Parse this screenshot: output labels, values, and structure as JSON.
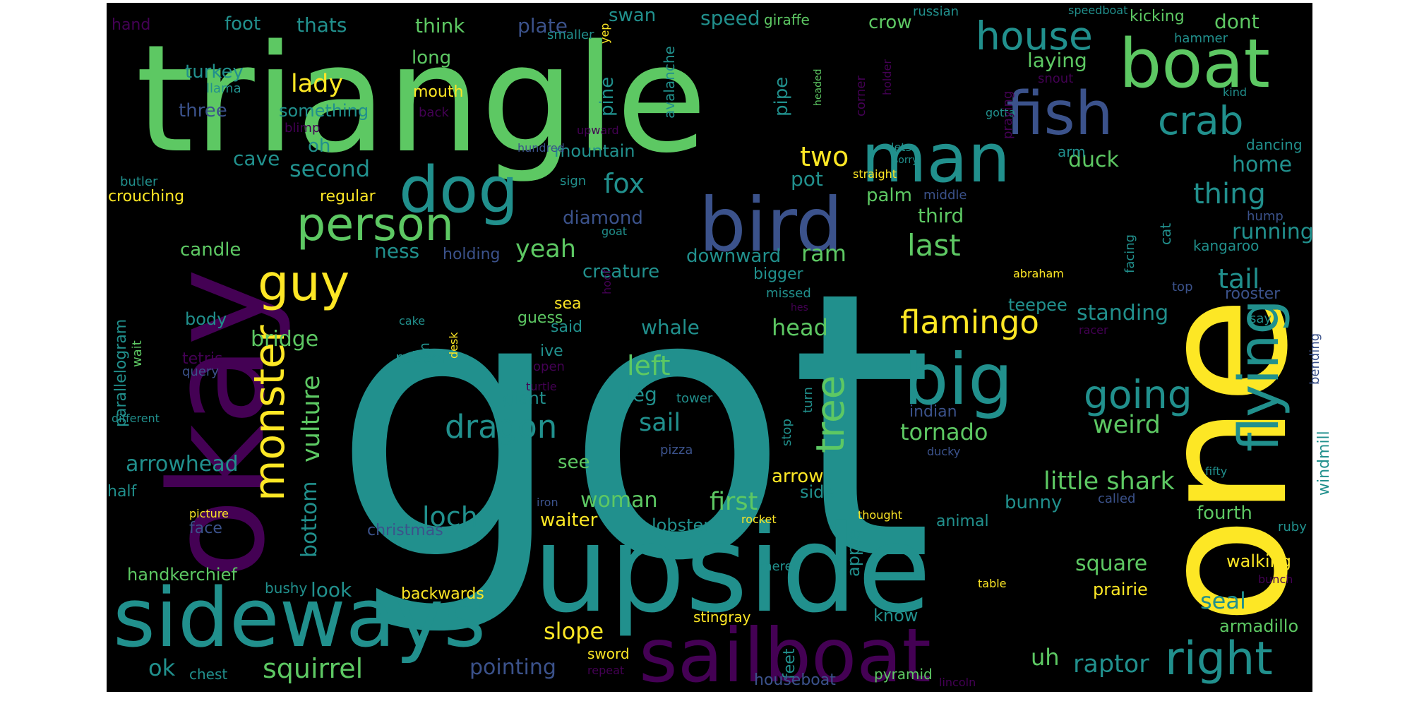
{
  "background": "#000000",
  "canvas": "#ffffff",
  "palette": {
    "v1": "#440154",
    "v2": "#3b528b",
    "v3": "#21908d",
    "v4": "#5dc863",
    "v5": "#fde725"
  },
  "words": [
    {
      "text": "got",
      "color": "v3"
    },
    {
      "text": "one",
      "color": "v5"
    },
    {
      "text": "triangle",
      "color": "v4"
    },
    {
      "text": "upside",
      "color": "v3"
    },
    {
      "text": "okay",
      "color": "v1"
    },
    {
      "text": "sailboat",
      "color": "v1"
    },
    {
      "text": "sideways",
      "color": "v3"
    },
    {
      "text": "boat",
      "color": "v4"
    },
    {
      "text": "dog",
      "color": "v3"
    },
    {
      "text": "bird",
      "color": "v2"
    },
    {
      "text": "man",
      "color": "v3"
    },
    {
      "text": "fish",
      "color": "v2"
    },
    {
      "text": "big",
      "color": "v3"
    },
    {
      "text": "flying",
      "color": "v3"
    },
    {
      "text": "right",
      "color": "v3"
    },
    {
      "text": "person",
      "color": "v4"
    },
    {
      "text": "house",
      "color": "v3"
    },
    {
      "text": "crab",
      "color": "v3"
    },
    {
      "text": "guy",
      "color": "v5"
    },
    {
      "text": "monster",
      "color": "v5"
    },
    {
      "text": "going",
      "color": "v3"
    },
    {
      "text": "tree",
      "color": "v4"
    },
    {
      "text": "flamingo",
      "color": "v5"
    },
    {
      "text": "dragon",
      "color": "v3"
    },
    {
      "text": "squirrel",
      "color": "v4"
    },
    {
      "text": "bottom",
      "color": "v3"
    },
    {
      "text": "vulture",
      "color": "v4"
    },
    {
      "text": "thing",
      "color": "v3"
    },
    {
      "text": "tail",
      "color": "v3"
    },
    {
      "text": "last",
      "color": "v4"
    },
    {
      "text": "weird",
      "color": "v4"
    },
    {
      "text": "fox",
      "color": "v3"
    },
    {
      "text": "raptor",
      "color": "v3"
    },
    {
      "text": "little shark",
      "color": "v4"
    },
    {
      "text": "tornado",
      "color": "v4"
    },
    {
      "text": "lady",
      "color": "v5"
    },
    {
      "text": "second",
      "color": "v3"
    },
    {
      "text": "two",
      "color": "v5"
    },
    {
      "text": "left",
      "color": "v4"
    },
    {
      "text": "yeah",
      "color": "v4"
    },
    {
      "text": "loch",
      "color": "v3"
    },
    {
      "text": "woman",
      "color": "v4"
    },
    {
      "text": "first",
      "color": "v4"
    },
    {
      "text": "sail",
      "color": "v3"
    },
    {
      "text": "slope",
      "color": "v5"
    },
    {
      "text": "pointing",
      "color": "v2"
    },
    {
      "text": "uh",
      "color": "v4"
    },
    {
      "text": "ok",
      "color": "v3"
    },
    {
      "text": "arrowhead",
      "color": "v3"
    },
    {
      "text": "seal",
      "color": "v3"
    },
    {
      "text": "head",
      "color": "v4"
    },
    {
      "text": "square",
      "color": "v4"
    },
    {
      "text": "bridge",
      "color": "v4"
    },
    {
      "text": "home",
      "color": "v3"
    },
    {
      "text": "running",
      "color": "v3"
    },
    {
      "text": "standing",
      "color": "v3"
    },
    {
      "text": "whale",
      "color": "v3"
    },
    {
      "text": "foot",
      "color": "v3"
    },
    {
      "text": "thats",
      "color": "v3"
    },
    {
      "text": "think",
      "color": "v4"
    },
    {
      "text": "plate",
      "color": "v2"
    },
    {
      "text": "swan",
      "color": "v3"
    },
    {
      "text": "speed",
      "color": "v3"
    },
    {
      "text": "crow",
      "color": "v4"
    },
    {
      "text": "laying",
      "color": "v4"
    },
    {
      "text": "dont",
      "color": "v4"
    },
    {
      "text": "kicking",
      "color": "v4"
    },
    {
      "text": "long",
      "color": "v4"
    },
    {
      "text": "turkey",
      "color": "v3"
    },
    {
      "text": "three",
      "color": "v2"
    },
    {
      "text": "something",
      "color": "v3"
    },
    {
      "text": "mouth",
      "color": "v5"
    },
    {
      "text": "mountain",
      "color": "v3"
    },
    {
      "text": "cave",
      "color": "v3"
    },
    {
      "text": "oh",
      "color": "v3"
    },
    {
      "text": "candle",
      "color": "v4"
    },
    {
      "text": "ness",
      "color": "v3"
    },
    {
      "text": "diamond",
      "color": "v2"
    },
    {
      "text": "creature",
      "color": "v3"
    },
    {
      "text": "downward",
      "color": "v3"
    },
    {
      "text": "ram",
      "color": "v4"
    },
    {
      "text": "pot",
      "color": "v3"
    },
    {
      "text": "palm",
      "color": "v4"
    },
    {
      "text": "third",
      "color": "v4"
    },
    {
      "text": "duck",
      "color": "v4"
    },
    {
      "text": "regular",
      "color": "v5"
    },
    {
      "text": "crouching",
      "color": "v5"
    },
    {
      "text": "butler",
      "color": "v3"
    },
    {
      "text": "parallelogram",
      "color": "v3"
    },
    {
      "text": "body",
      "color": "v3"
    },
    {
      "text": "tetris",
      "color": "v1"
    },
    {
      "text": "wait",
      "color": "v4"
    },
    {
      "text": "query",
      "color": "v2"
    },
    {
      "text": "different",
      "color": "v3"
    },
    {
      "text": "half",
      "color": "v3"
    },
    {
      "text": "handkerchief",
      "color": "v4"
    },
    {
      "text": "look",
      "color": "v3"
    },
    {
      "text": "bushy",
      "color": "v3"
    },
    {
      "text": "backwards",
      "color": "v5"
    },
    {
      "text": "face",
      "color": "v2"
    },
    {
      "text": "picture",
      "color": "v5"
    },
    {
      "text": "chest",
      "color": "v3"
    },
    {
      "text": "christmas",
      "color": "v2"
    },
    {
      "text": "waiter",
      "color": "v5"
    },
    {
      "text": "lobster",
      "color": "v3"
    },
    {
      "text": "apple",
      "color": "v3"
    },
    {
      "text": "arrow",
      "color": "v5"
    },
    {
      "text": "side",
      "color": "v3"
    },
    {
      "text": "see",
      "color": "v4"
    },
    {
      "text": "giant",
      "color": "v3"
    },
    {
      "text": "leg",
      "color": "v3"
    },
    {
      "text": "said",
      "color": "v3"
    },
    {
      "text": "sea",
      "color": "v5"
    },
    {
      "text": "guess",
      "color": "v4"
    },
    {
      "text": "ive",
      "color": "v3"
    },
    {
      "text": "open",
      "color": "v1"
    },
    {
      "text": "rubber",
      "color": "v3"
    },
    {
      "text": "turtle",
      "color": "v1"
    },
    {
      "text": "tower",
      "color": "v3"
    },
    {
      "text": "pizza",
      "color": "v2"
    },
    {
      "text": "holding",
      "color": "v2"
    },
    {
      "text": "bigger",
      "color": "v3"
    },
    {
      "text": "missed",
      "color": "v3"
    },
    {
      "text": "feet",
      "color": "v3"
    },
    {
      "text": "teepee",
      "color": "v3"
    },
    {
      "text": "rooster",
      "color": "v2"
    },
    {
      "text": "bunny",
      "color": "v3"
    },
    {
      "text": "fourth",
      "color": "v4"
    },
    {
      "text": "walking",
      "color": "v5"
    },
    {
      "text": "armadillo",
      "color": "v4"
    },
    {
      "text": "prairie",
      "color": "v5"
    },
    {
      "text": "animal",
      "color": "v3"
    },
    {
      "text": "windmill",
      "color": "v3"
    },
    {
      "text": "bending",
      "color": "v2"
    },
    {
      "text": "kangaroo",
      "color": "v3"
    },
    {
      "text": "cat",
      "color": "v3"
    },
    {
      "text": "dancing",
      "color": "v3"
    },
    {
      "text": "hump",
      "color": "v2"
    },
    {
      "text": "middle",
      "color": "v2"
    },
    {
      "text": "arm",
      "color": "v3"
    },
    {
      "text": "facing",
      "color": "v3"
    },
    {
      "text": "top",
      "color": "v2"
    },
    {
      "text": "say",
      "color": "v3"
    },
    {
      "text": "racer",
      "color": "v1"
    },
    {
      "text": "indian",
      "color": "v2"
    },
    {
      "text": "ducky",
      "color": "v2"
    },
    {
      "text": "fifty",
      "color": "v3"
    },
    {
      "text": "called",
      "color": "v2"
    },
    {
      "text": "ruby",
      "color": "v3"
    },
    {
      "text": "bunch",
      "color": "v1"
    },
    {
      "text": "table",
      "color": "v5"
    },
    {
      "text": "know",
      "color": "v3"
    },
    {
      "text": "stingray",
      "color": "v5"
    },
    {
      "text": "theres",
      "color": "v3"
    },
    {
      "text": "thought",
      "color": "v5"
    },
    {
      "text": "rocket",
      "color": "v5"
    },
    {
      "text": "iron",
      "color": "v2"
    },
    {
      "text": "sword",
      "color": "v5"
    },
    {
      "text": "repeat",
      "color": "v1"
    },
    {
      "text": "houseboat",
      "color": "v2"
    },
    {
      "text": "pyramid",
      "color": "v4"
    },
    {
      "text": "lincoln",
      "color": "v1"
    },
    {
      "text": "hand",
      "color": "v1"
    },
    {
      "text": "llama",
      "color": "v3"
    },
    {
      "text": "back",
      "color": "v1"
    },
    {
      "text": "blimp",
      "color": "v1"
    },
    {
      "text": "pine",
      "color": "v3"
    },
    {
      "text": "pipe",
      "color": "v3"
    },
    {
      "text": "avalanche",
      "color": "v3"
    },
    {
      "text": "upward",
      "color": "v1"
    },
    {
      "text": "corner",
      "color": "v1"
    },
    {
      "text": "headed",
      "color": "v4"
    },
    {
      "text": "holder",
      "color": "v1"
    },
    {
      "text": "giraffe",
      "color": "v4"
    },
    {
      "text": "russian",
      "color": "v3"
    },
    {
      "text": "speedboat",
      "color": "v3"
    },
    {
      "text": "smaller",
      "color": "v3"
    },
    {
      "text": "hammer",
      "color": "v3"
    },
    {
      "text": "snout",
      "color": "v1"
    },
    {
      "text": "kind",
      "color": "v3"
    },
    {
      "text": "gotta",
      "color": "v3"
    },
    {
      "text": "praying",
      "color": "v1"
    },
    {
      "text": "yep",
      "color": "v5"
    },
    {
      "text": "lets",
      "color": "v3"
    },
    {
      "text": "sorry",
      "color": "v3"
    },
    {
      "text": "straight",
      "color": "v5"
    },
    {
      "text": "hundred",
      "color": "v2"
    },
    {
      "text": "sign",
      "color": "v3"
    },
    {
      "text": "goat",
      "color": "v3"
    },
    {
      "text": "hoof",
      "color": "v1"
    },
    {
      "text": "abraham",
      "color": "v5"
    },
    {
      "text": "hes",
      "color": "v1"
    },
    {
      "text": "cake",
      "color": "v3"
    },
    {
      "text": "im",
      "color": "v3"
    },
    {
      "text": "desk",
      "color": "v5"
    },
    {
      "text": "stop",
      "color": "v3"
    },
    {
      "text": "turn",
      "color": "v3"
    }
  ]
}
